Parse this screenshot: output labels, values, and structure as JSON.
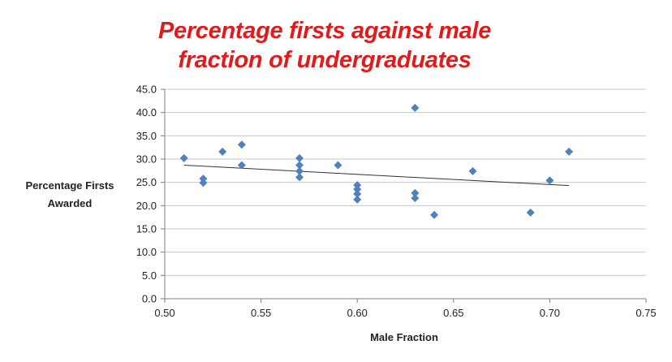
{
  "chart_data": {
    "type": "scatter",
    "title_lines": [
      "Percentage firsts against male",
      "fraction of undergraduates"
    ],
    "xlabel": "Male Fraction",
    "ylabel_lines": [
      "Percentage Firsts",
      "Awarded"
    ],
    "xlim": [
      0.5,
      0.75
    ],
    "ylim": [
      0.0,
      45.0
    ],
    "x_ticks": [
      0.5,
      0.55,
      0.6,
      0.65,
      0.7,
      0.75
    ],
    "x_tick_labels": [
      "0.50",
      "0.55",
      "0.60",
      "0.65",
      "0.70",
      "0.75"
    ],
    "y_ticks": [
      0,
      5,
      10,
      15,
      20,
      25,
      30,
      35,
      40,
      45
    ],
    "y_tick_labels": [
      "0.0",
      "5.0",
      "10.0",
      "15.0",
      "20.0",
      "25.0",
      "30.0",
      "35.0",
      "40.0",
      "45.0"
    ],
    "grid": "horizontal",
    "legend": "none",
    "series": [
      {
        "marker": "diamond",
        "x": [
          0.51,
          0.52,
          0.52,
          0.53,
          0.54,
          0.54,
          0.57,
          0.57,
          0.57,
          0.57,
          0.59,
          0.6,
          0.6,
          0.6,
          0.6,
          0.63,
          0.63,
          0.63,
          0.64,
          0.66,
          0.69,
          0.7,
          0.71
        ],
        "y": [
          30.2,
          25.8,
          24.9,
          31.6,
          33.1,
          28.7,
          30.2,
          28.7,
          27.4,
          26.1,
          28.7,
          24.4,
          23.5,
          22.5,
          21.3,
          41.0,
          22.7,
          21.6,
          18.0,
          27.4,
          18.5,
          25.4,
          31.6
        ]
      }
    ],
    "trendline": {
      "type": "linear",
      "x": [
        0.51,
        0.71
      ],
      "y": [
        28.7,
        24.3
      ]
    },
    "colors": {
      "title": "#e01b1b",
      "marker": "#4f81bd",
      "trendline": "#333333",
      "grid": "#c8c8c8",
      "axis": "#7f7f7f",
      "text": "#222222"
    }
  }
}
